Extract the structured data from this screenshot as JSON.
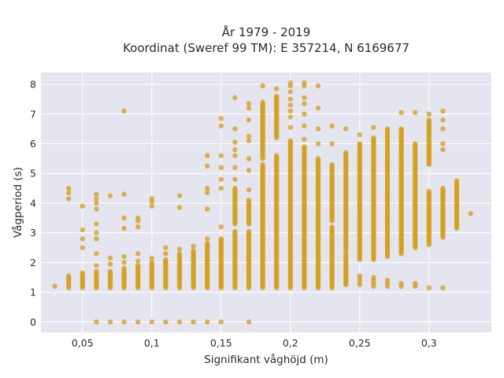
{
  "chart_data": {
    "type": "scatter",
    "title": "År 1979 - 2019",
    "subtitle": "Koordinat (Sweref 99 TM): E 357214, N 6169677",
    "xlabel": "Signifikant våghöjd (m)",
    "ylabel": "Vågperiod (s)",
    "xlim": [
      0.02,
      0.345
    ],
    "ylim": [
      -0.35,
      8.4
    ],
    "x_ticks": [
      0.05,
      0.1,
      0.15,
      0.2,
      0.25,
      0.3
    ],
    "x_tick_labels": [
      "0,05",
      "0,1",
      "0,15",
      "0,2",
      "0,25",
      "0,3"
    ],
    "y_ticks": [
      0,
      1,
      2,
      3,
      4,
      5,
      6,
      7,
      8
    ],
    "y_tick_labels": [
      "0",
      "1",
      "2",
      "3",
      "4",
      "5",
      "6",
      "7",
      "8"
    ],
    "grid": true,
    "legend": "none",
    "marker_color": "#D4A020",
    "background_color": "#E5E5EF",
    "columns": [
      {
        "x": 0.03,
        "dense": [],
        "points": [
          1.2
        ]
      },
      {
        "x": 0.04,
        "dense": [
          [
            1.15,
            1.55
          ]
        ],
        "points": [
          4.15,
          4.35,
          4.5
        ]
      },
      {
        "x": 0.05,
        "dense": [
          [
            1.15,
            1.65
          ]
        ],
        "points": [
          2.5,
          2.8,
          3.1,
          3.9
        ]
      },
      {
        "x": 0.06,
        "dense": [
          [
            1.15,
            1.7
          ]
        ],
        "points": [
          0,
          1.9,
          2.3,
          2.8,
          3.0,
          3.3,
          3.8,
          4.0,
          4.15,
          4.3
        ]
      },
      {
        "x": 0.07,
        "dense": [
          [
            1.15,
            1.7
          ]
        ],
        "points": [
          0,
          1.95,
          2.15,
          4.25
        ]
      },
      {
        "x": 0.08,
        "dense": [
          [
            1.15,
            1.8
          ]
        ],
        "points": [
          0,
          2.0,
          2.2,
          3.15,
          3.5,
          4.3,
          7.1
        ]
      },
      {
        "x": 0.09,
        "dense": [
          [
            1.15,
            1.9
          ]
        ],
        "points": [
          0,
          2.05,
          2.3,
          3.2,
          3.4,
          3.5
        ]
      },
      {
        "x": 0.1,
        "dense": [
          [
            1.15,
            2.0
          ]
        ],
        "points": [
          0,
          2.15,
          3.9,
          4.05,
          4.15
        ]
      },
      {
        "x": 0.11,
        "dense": [
          [
            1.15,
            2.1
          ]
        ],
        "points": [
          0,
          2.3,
          2.5
        ]
      },
      {
        "x": 0.12,
        "dense": [
          [
            1.15,
            2.3
          ]
        ],
        "points": [
          0,
          2.45,
          3.85,
          4.25
        ]
      },
      {
        "x": 0.13,
        "dense": [
          [
            1.15,
            2.4
          ]
        ],
        "points": [
          0,
          2.55
        ]
      },
      {
        "x": 0.14,
        "dense": [
          [
            1.15,
            2.65
          ]
        ],
        "points": [
          0,
          2.8,
          3.8,
          4.35,
          4.5,
          5.25,
          5.6
        ]
      },
      {
        "x": 0.15,
        "dense": [
          [
            1.15,
            2.8
          ]
        ],
        "points": [
          0,
          3.2,
          4.5,
          4.8,
          5.2,
          5.6,
          6.6,
          6.85
        ]
      },
      {
        "x": 0.16,
        "dense": [
          [
            1.15,
            3.05
          ],
          [
            3.3,
            4.5
          ]
        ],
        "points": [
          4.8,
          5.2,
          5.6,
          5.8,
          6.05,
          6.5,
          7.55
        ]
      },
      {
        "x": 0.17,
        "dense": [
          [
            1.15,
            3.05
          ],
          [
            3.3,
            4.1
          ]
        ],
        "points": [
          0,
          4.45,
          5.1,
          5.5,
          6.1,
          6.25,
          6.8,
          7.2,
          7.35
        ]
      },
      {
        "x": 0.18,
        "dense": [
          [
            1.15,
            5.3
          ],
          [
            5.5,
            7.4
          ]
        ],
        "points": [
          7.95
        ]
      },
      {
        "x": 0.19,
        "dense": [
          [
            1.15,
            5.6
          ],
          [
            6.2,
            7.6
          ]
        ],
        "points": [
          7.85
        ]
      },
      {
        "x": 0.2,
        "dense": [
          [
            1.15,
            6.1
          ]
        ],
        "points": [
          6.55,
          6.9,
          7.1,
          7.3,
          7.5,
          7.75,
          7.95,
          8.05
        ]
      },
      {
        "x": 0.21,
        "dense": [
          [
            1.15,
            5.9
          ]
        ],
        "points": [
          6.15,
          6.6,
          7.0,
          7.35,
          7.55,
          7.95,
          8.05
        ]
      },
      {
        "x": 0.22,
        "dense": [
          [
            1.15,
            5.5
          ]
        ],
        "points": [
          6.0,
          6.5,
          7.2,
          7.95
        ]
      },
      {
        "x": 0.23,
        "dense": [
          [
            1.15,
            3.2
          ],
          [
            3.4,
            5.3
          ]
        ],
        "points": [
          6.0,
          6.6
        ]
      },
      {
        "x": 0.24,
        "dense": [
          [
            1.25,
            2.3
          ],
          [
            2.4,
            5.7
          ]
        ],
        "points": [
          6.5
        ]
      },
      {
        "x": 0.25,
        "dense": [
          [
            2.1,
            6.0
          ]
        ],
        "points": [
          1.25,
          1.35,
          1.45,
          1.55,
          6.3
        ]
      },
      {
        "x": 0.26,
        "dense": [
          [
            2.1,
            6.2
          ]
        ],
        "points": [
          1.2,
          1.3,
          1.4,
          1.5,
          6.55
        ]
      },
      {
        "x": 0.27,
        "dense": [
          [
            2.2,
            6.5
          ]
        ],
        "points": [
          1.2,
          1.3,
          1.4
        ]
      },
      {
        "x": 0.28,
        "dense": [
          [
            2.3,
            6.5
          ]
        ],
        "points": [
          1.2,
          1.3,
          7.05
        ]
      },
      {
        "x": 0.29,
        "dense": [
          [
            2.5,
            6.0
          ]
        ],
        "points": [
          1.2,
          1.3,
          7.05
        ]
      },
      {
        "x": 0.3,
        "dense": [
          [
            2.6,
            4.4
          ],
          [
            5.3,
            6.8
          ]
        ],
        "points": [
          1.15,
          7.0
        ]
      },
      {
        "x": 0.31,
        "dense": [
          [
            2.85,
            4.5
          ]
        ],
        "points": [
          1.15,
          5.8,
          6.0,
          6.5,
          6.8,
          7.1
        ]
      },
      {
        "x": 0.32,
        "dense": [
          [
            3.15,
            4.75
          ]
        ],
        "points": []
      },
      {
        "x": 0.33,
        "dense": [],
        "points": [
          3.65
        ]
      }
    ]
  }
}
